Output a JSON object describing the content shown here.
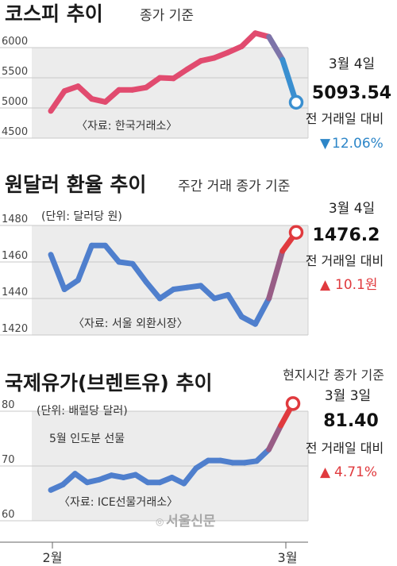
{
  "colors": {
    "kospi_line": "#e14b6f",
    "kospi_drop": "#3a8fd0",
    "fx_line": "#4f7fcd",
    "oil_line": "#4f7fcd",
    "rise": "#e03a3e",
    "fall": "#2d86c8",
    "plot_bg": "#ececec"
  },
  "x_axis": {
    "start_label": "2월",
    "end_label": "3월"
  },
  "watermark": "서울신문",
  "chart_data": [
    {
      "type": "line",
      "title": "코스피 추이",
      "subtitle": "종가 기준",
      "unit_note": "",
      "source": "〈자료: 한국거래소〉",
      "extra_note": "",
      "y_ticks": [
        "6000",
        "5500",
        "5000",
        "4500"
      ],
      "ylim": [
        4500,
        6000
      ],
      "values": [
        4950,
        5280,
        5360,
        5150,
        5100,
        5300,
        5300,
        5340,
        5500,
        5490,
        5640,
        5780,
        5830,
        5920,
        6020,
        6240,
        6180,
        5800,
        5093.54
      ],
      "end_date": "3월 4일",
      "end_value": "5093.54",
      "compare_label": "전 거래일 대비",
      "change_arrow": "▼",
      "change_text": "12.06%",
      "change_dir": "down"
    },
    {
      "type": "line",
      "title": "원달러 환율 추이",
      "subtitle": "주간 거래 종가 기준",
      "unit_note": "(단위: 달러당 원)",
      "source": "〈자료: 서울 외환시장〉",
      "extra_note": "",
      "y_ticks": [
        "1480",
        "1460",
        "1440",
        "1420"
      ],
      "ylim": [
        1420,
        1480
      ],
      "values": [
        1464,
        1445,
        1450,
        1469,
        1469,
        1460,
        1459,
        1449,
        1440,
        1445,
        1446,
        1447,
        1440,
        1442,
        1430,
        1426,
        1440,
        1466,
        1476.2
      ],
      "end_date": "3월 4일",
      "end_value": "1476.2",
      "compare_label": "전 거래일 대비",
      "change_arrow": "▲",
      "change_text": "10.1원",
      "change_dir": "up"
    },
    {
      "type": "line",
      "title": "국제유가(브렌트유) 추이",
      "subtitle": "",
      "header_note": "현지시간 종가 기준",
      "unit_note": "(단위: 배럴당 달러)",
      "source": "〈자료: ICE선물거래소〉",
      "extra_note": "5월 인도분 선물",
      "y_ticks": [
        "80",
        "70",
        "60"
      ],
      "ylim": [
        60,
        80
      ],
      "values": [
        65.6,
        66.6,
        68.6,
        67.0,
        67.5,
        68.3,
        67.9,
        68.4,
        67.0,
        67.0,
        67.9,
        66.8,
        69.6,
        71.0,
        71.0,
        70.6,
        70.6,
        70.9,
        73.0,
        77.4,
        81.4
      ],
      "end_date": "3월 3일",
      "end_value": "81.40",
      "compare_label": "전 거래일 대비",
      "change_arrow": "▲",
      "change_text": "4.71%",
      "change_dir": "up"
    }
  ]
}
